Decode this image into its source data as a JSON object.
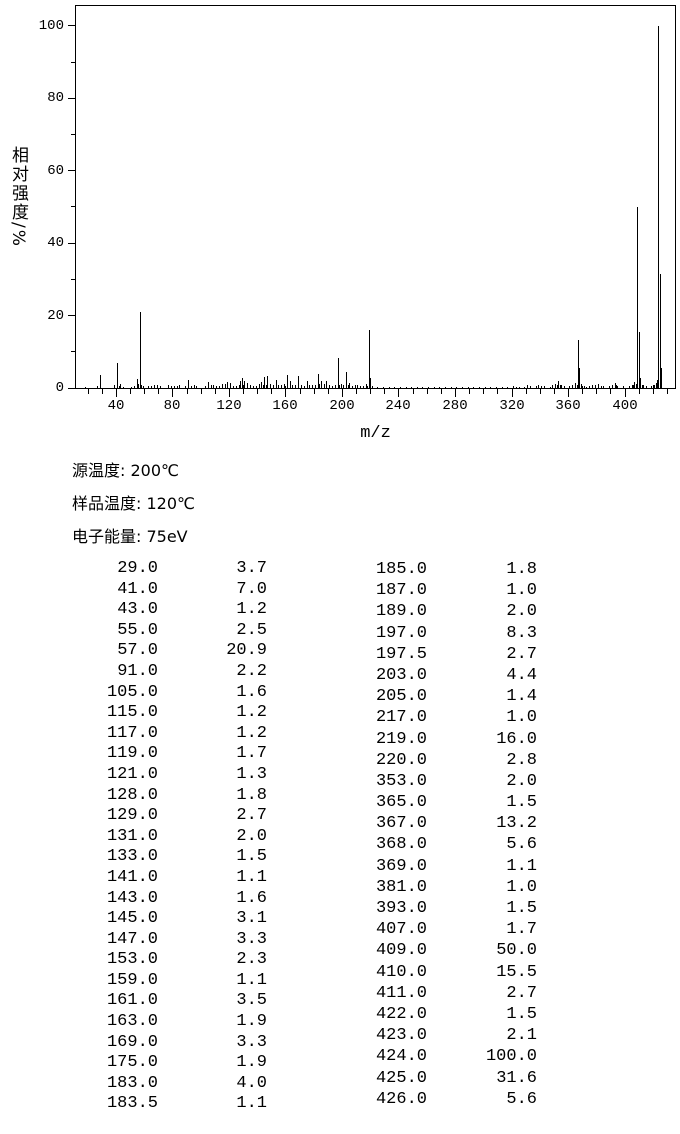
{
  "page": {
    "background": "#ffffff",
    "foreground": "#000000"
  },
  "chart_data": {
    "type": "bar",
    "subtype": "mass-spectrum",
    "title": "",
    "xlabel": "m/z",
    "ylabel": "相对强度/%",
    "xlim": [
      11.8,
      435.7
    ],
    "ylim": [
      0,
      105.5
    ],
    "x_major_ticks": [
      40,
      80,
      120,
      160,
      200,
      240,
      280,
      320,
      360,
      400
    ],
    "x_minor_tick_step": 10,
    "y_major_ticks": [
      0,
      20,
      40,
      60,
      80,
      100
    ],
    "y_minor_ticks": [
      10,
      30,
      50,
      70,
      90
    ],
    "grid": false,
    "legend": false,
    "bar_color": "#000000",
    "peaks": [
      [
        29.0,
        3.7
      ],
      [
        41.0,
        7.0
      ],
      [
        43.0,
        1.2
      ],
      [
        55.0,
        2.5
      ],
      [
        57.0,
        20.9
      ],
      [
        91.0,
        2.2
      ],
      [
        105.0,
        1.6
      ],
      [
        115.0,
        1.2
      ],
      [
        117.0,
        1.2
      ],
      [
        119.0,
        1.7
      ],
      [
        121.0,
        1.3
      ],
      [
        128.0,
        1.8
      ],
      [
        129.0,
        2.7
      ],
      [
        131.0,
        2.0
      ],
      [
        133.0,
        1.5
      ],
      [
        141.0,
        1.1
      ],
      [
        143.0,
        1.6
      ],
      [
        145.0,
        3.1
      ],
      [
        147.0,
        3.3
      ],
      [
        153.0,
        2.3
      ],
      [
        159.0,
        1.1
      ],
      [
        161.0,
        3.5
      ],
      [
        163.0,
        1.9
      ],
      [
        169.0,
        3.3
      ],
      [
        175.0,
        1.9
      ],
      [
        183.0,
        4.0
      ],
      [
        183.5,
        1.1
      ],
      [
        185.0,
        1.8
      ],
      [
        187.0,
        1.0
      ],
      [
        189.0,
        2.0
      ],
      [
        197.0,
        8.3
      ],
      [
        197.5,
        2.7
      ],
      [
        203.0,
        4.4
      ],
      [
        205.0,
        1.4
      ],
      [
        217.0,
        1.0
      ],
      [
        219.0,
        16.0
      ],
      [
        220.0,
        2.8
      ],
      [
        353.0,
        2.0
      ],
      [
        365.0,
        1.5
      ],
      [
        367.0,
        13.2
      ],
      [
        368.0,
        5.6
      ],
      [
        369.0,
        1.1
      ],
      [
        381.0,
        1.0
      ],
      [
        393.0,
        1.5
      ],
      [
        407.0,
        1.7
      ],
      [
        409.0,
        50.0
      ],
      [
        410.0,
        15.5
      ],
      [
        411.0,
        2.7
      ],
      [
        422.0,
        1.5
      ],
      [
        423.0,
        2.1
      ],
      [
        424.0,
        100.0
      ],
      [
        425.0,
        31.6
      ],
      [
        426.0,
        5.6
      ]
    ],
    "minor_peaks_estimated": [
      [
        18,
        0.4
      ],
      [
        27,
        0.6
      ],
      [
        39,
        0.9
      ],
      [
        42,
        0.5
      ],
      [
        45,
        0.4
      ],
      [
        51,
        0.4
      ],
      [
        53,
        0.6
      ],
      [
        56,
        1.0
      ],
      [
        58,
        0.9
      ],
      [
        59,
        0.5
      ],
      [
        63,
        0.5
      ],
      [
        65,
        0.6
      ],
      [
        67,
        0.7
      ],
      [
        69,
        0.8
      ],
      [
        71,
        0.6
      ],
      [
        77,
        0.7
      ],
      [
        79,
        0.6
      ],
      [
        81,
        0.5
      ],
      [
        83,
        0.5
      ],
      [
        85,
        0.8
      ],
      [
        89,
        0.6
      ],
      [
        93,
        0.6
      ],
      [
        95,
        0.7
      ],
      [
        97,
        0.6
      ],
      [
        103,
        0.6
      ],
      [
        107,
        0.7
      ],
      [
        109,
        0.8
      ],
      [
        111,
        0.6
      ],
      [
        113,
        0.5
      ],
      [
        123,
        0.5
      ],
      [
        125,
        0.6
      ],
      [
        127,
        0.9
      ],
      [
        130,
        0.8
      ],
      [
        135,
        0.7
      ],
      [
        137,
        0.5
      ],
      [
        139,
        0.6
      ],
      [
        144,
        0.8
      ],
      [
        146,
        0.9
      ],
      [
        149,
        1.0
      ],
      [
        151,
        0.7
      ],
      [
        155,
        0.8
      ],
      [
        157,
        0.7
      ],
      [
        160,
        0.6
      ],
      [
        165,
        0.7
      ],
      [
        167,
        0.8
      ],
      [
        171,
        0.9
      ],
      [
        173,
        0.6
      ],
      [
        177,
        0.7
      ],
      [
        179,
        0.8
      ],
      [
        181,
        0.9
      ],
      [
        184,
        0.8
      ],
      [
        191,
        0.7
      ],
      [
        193,
        0.6
      ],
      [
        195,
        0.8
      ],
      [
        198,
        0.9
      ],
      [
        199,
        1.0
      ],
      [
        201,
        0.9
      ],
      [
        204,
        0.7
      ],
      [
        207,
        0.6
      ],
      [
        209,
        0.7
      ],
      [
        211,
        0.8
      ],
      [
        213,
        0.6
      ],
      [
        215,
        0.5
      ],
      [
        218,
        0.6
      ],
      [
        221,
        0.5
      ],
      [
        225,
        0.3
      ],
      [
        229,
        0.3
      ],
      [
        233,
        0.4
      ],
      [
        237,
        0.3
      ],
      [
        241,
        0.3
      ],
      [
        245,
        0.4
      ],
      [
        249,
        0.3
      ],
      [
        253,
        0.3
      ],
      [
        257,
        0.4
      ],
      [
        261,
        0.4
      ],
      [
        265,
        0.3
      ],
      [
        269,
        0.3
      ],
      [
        273,
        0.4
      ],
      [
        277,
        0.3
      ],
      [
        281,
        0.4
      ],
      [
        285,
        0.3
      ],
      [
        289,
        0.3
      ],
      [
        293,
        0.4
      ],
      [
        297,
        0.3
      ],
      [
        301,
        0.4
      ],
      [
        305,
        0.3
      ],
      [
        309,
        0.4
      ],
      [
        313,
        0.3
      ],
      [
        317,
        0.4
      ],
      [
        321,
        0.5
      ],
      [
        323,
        0.4
      ],
      [
        325,
        0.4
      ],
      [
        329,
        0.4
      ],
      [
        331,
        0.9
      ],
      [
        333,
        0.5
      ],
      [
        337,
        0.6
      ],
      [
        339,
        0.7
      ],
      [
        341,
        0.6
      ],
      [
        343,
        0.5
      ],
      [
        347,
        0.4
      ],
      [
        349,
        0.8
      ],
      [
        351,
        1.0
      ],
      [
        352,
        0.8
      ],
      [
        354,
        0.9
      ],
      [
        355,
        0.7
      ],
      [
        357,
        0.5
      ],
      [
        361,
        0.5
      ],
      [
        363,
        0.8
      ],
      [
        366,
        0.9
      ],
      [
        370,
        0.6
      ],
      [
        371,
        0.5
      ],
      [
        373,
        0.4
      ],
      [
        375,
        0.5
      ],
      [
        377,
        0.7
      ],
      [
        379,
        0.8
      ],
      [
        383,
        0.6
      ],
      [
        385,
        0.5
      ],
      [
        389,
        0.5
      ],
      [
        391,
        0.8
      ],
      [
        394,
        0.7
      ],
      [
        395,
        0.6
      ],
      [
        399,
        0.5
      ],
      [
        403,
        0.6
      ],
      [
        405,
        0.8
      ],
      [
        406,
        0.9
      ],
      [
        408,
        1.0
      ],
      [
        412,
        0.9
      ],
      [
        413,
        0.7
      ],
      [
        415,
        0.5
      ],
      [
        419,
        0.6
      ],
      [
        420,
        0.8
      ],
      [
        421,
        0.9
      ]
    ]
  },
  "conditions": {
    "lines": [
      "源温度: 200℃",
      "样品温度: 120℃",
      "电子能量: 75eV"
    ]
  },
  "peak_table": {
    "left_column": [
      [
        "29.0",
        "3.7"
      ],
      [
        "41.0",
        "7.0"
      ],
      [
        "43.0",
        "1.2"
      ],
      [
        "55.0",
        "2.5"
      ],
      [
        "57.0",
        "20.9"
      ],
      [
        "91.0",
        "2.2"
      ],
      [
        "105.0",
        "1.6"
      ],
      [
        "115.0",
        "1.2"
      ],
      [
        "117.0",
        "1.2"
      ],
      [
        "119.0",
        "1.7"
      ],
      [
        "121.0",
        "1.3"
      ],
      [
        "128.0",
        "1.8"
      ],
      [
        "129.0",
        "2.7"
      ],
      [
        "131.0",
        "2.0"
      ],
      [
        "133.0",
        "1.5"
      ],
      [
        "141.0",
        "1.1"
      ],
      [
        "143.0",
        "1.6"
      ],
      [
        "145.0",
        "3.1"
      ],
      [
        "147.0",
        "3.3"
      ],
      [
        "153.0",
        "2.3"
      ],
      [
        "159.0",
        "1.1"
      ],
      [
        "161.0",
        "3.5"
      ],
      [
        "163.0",
        "1.9"
      ],
      [
        "169.0",
        "3.3"
      ],
      [
        "175.0",
        "1.9"
      ],
      [
        "183.0",
        "4.0"
      ],
      [
        "183.5",
        "1.1"
      ]
    ],
    "right_column": [
      [
        "185.0",
        "1.8"
      ],
      [
        "187.0",
        "1.0"
      ],
      [
        "189.0",
        "2.0"
      ],
      [
        "197.0",
        "8.3"
      ],
      [
        "197.5",
        "2.7"
      ],
      [
        "203.0",
        "4.4"
      ],
      [
        "205.0",
        "1.4"
      ],
      [
        "217.0",
        "1.0"
      ],
      [
        "219.0",
        "16.0"
      ],
      [
        "220.0",
        "2.8"
      ],
      [
        "353.0",
        "2.0"
      ],
      [
        "365.0",
        "1.5"
      ],
      [
        "367.0",
        "13.2"
      ],
      [
        "368.0",
        "5.6"
      ],
      [
        "369.0",
        "1.1"
      ],
      [
        "381.0",
        "1.0"
      ],
      [
        "393.0",
        "1.5"
      ],
      [
        "407.0",
        "1.7"
      ],
      [
        "409.0",
        "50.0"
      ],
      [
        "410.0",
        "15.5"
      ],
      [
        "411.0",
        "2.7"
      ],
      [
        "422.0",
        "1.5"
      ],
      [
        "423.0",
        "2.1"
      ],
      [
        "424.0",
        "100.0"
      ],
      [
        "425.0",
        "31.6"
      ],
      [
        "426.0",
        "5.6"
      ]
    ]
  }
}
